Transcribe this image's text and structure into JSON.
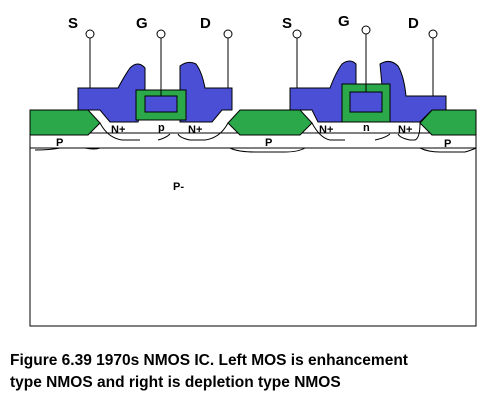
{
  "labels": {
    "left": {
      "source": "S",
      "gate": "G",
      "drain": "D",
      "channel": "p"
    },
    "right": {
      "source": "S",
      "gate": "G",
      "drain": "D",
      "channel": "n"
    },
    "n_plus": "N+",
    "p_stop": "P",
    "substrate": "P-"
  },
  "caption": {
    "line1": "Figure 6.39 1970s NMOS IC. Left MOS is enhancement",
    "line2": "type NMOS and right is depletion type NMOS"
  },
  "colors": {
    "metal": "#4a4fd6",
    "oxide": "#2aa84a",
    "polysilicon": "#4a4fd6",
    "substrate": "#ffffff",
    "outline": "#000000"
  }
}
